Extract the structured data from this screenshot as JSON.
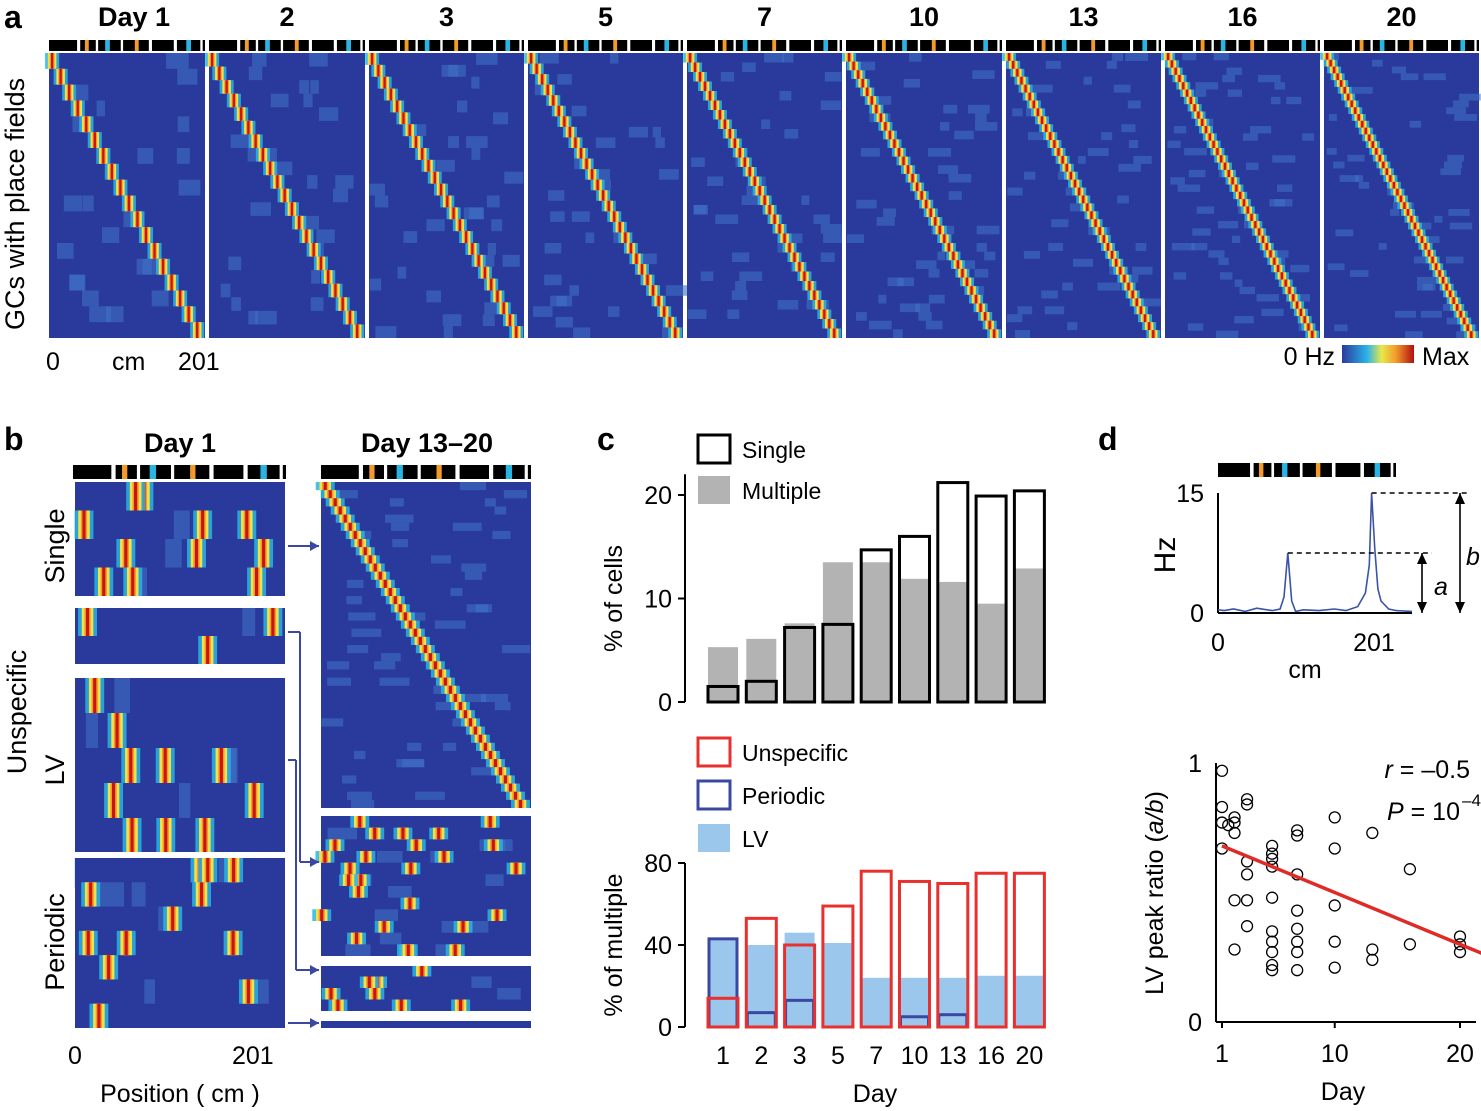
{
  "panels": {
    "a": "a",
    "b": "b",
    "c": "c",
    "d": "d"
  },
  "panel_a": {
    "days": [
      "Day 1",
      "2",
      "3",
      "5",
      "7",
      "10",
      "13",
      "16",
      "20"
    ],
    "ylabel": "GCs with place fields",
    "x_start": "0",
    "x_unit": "cm",
    "x_end": "201",
    "colorbar_min": "0 Hz",
    "colorbar_max": "Max"
  },
  "panel_b": {
    "title_left": "Day 1",
    "title_right": "Day 13–20",
    "group_label": "Unspecific",
    "rows": [
      "Single",
      "LV",
      "Periodic"
    ],
    "x_start": "0",
    "x_end": "201",
    "xlabel": "Position ( cm )"
  },
  "legend_top": {
    "single": "Single",
    "multiple": "Multiple"
  },
  "legend_bottom": {
    "unspecific": "Unspecific",
    "periodic": "Periodic",
    "lv": "LV"
  },
  "colors": {
    "heat_bg": "#2a3a9c",
    "grey": "#b3b3b3",
    "red": "#e8302e",
    "blue": "#3a48a4",
    "lightblue": "#9cc7ec",
    "orange": "#f39a2a",
    "cyan": "#29b5e3",
    "fit": "#e02a25",
    "trace": "#3a54a8"
  },
  "chart_data": [
    {
      "id": "c-top",
      "type": "bar",
      "categories": [
        "1",
        "2",
        "3",
        "5",
        "7",
        "10",
        "13",
        "16",
        "20"
      ],
      "series": [
        {
          "name": "Single",
          "values": [
            1.5,
            2.0,
            7.2,
            7.5,
            14.7,
            16.0,
            21.2,
            19.9,
            20.4
          ]
        },
        {
          "name": "Multiple",
          "values": [
            5.3,
            6.1,
            7.6,
            13.5,
            13.5,
            11.9,
            11.6,
            9.5,
            12.9
          ]
        }
      ],
      "ylabel": "% of cells",
      "ylim": [
        0,
        22
      ],
      "yticks": [
        "0",
        "10",
        "20"
      ]
    },
    {
      "id": "c-bottom",
      "type": "bar",
      "categories": [
        "1",
        "2",
        "3",
        "5",
        "7",
        "10",
        "13",
        "16",
        "20"
      ],
      "series": [
        {
          "name": "Unspecific",
          "values": [
            14,
            53,
            40,
            59,
            76,
            71,
            70,
            75,
            75
          ]
        },
        {
          "name": "Periodic",
          "values": [
            43,
            7,
            13,
            0,
            0,
            5,
            6,
            0,
            0
          ]
        },
        {
          "name": "LV",
          "values": [
            43,
            40,
            46,
            41,
            24,
            24,
            24,
            25,
            25
          ]
        }
      ],
      "ylabel": "% of multiple",
      "xlabel": "Day",
      "ylim": [
        0,
        80
      ],
      "yticks": [
        "0",
        "40",
        "80"
      ]
    },
    {
      "id": "d-top",
      "type": "line",
      "x": [
        0,
        8,
        20,
        35,
        50,
        70,
        80,
        85,
        90,
        95,
        100,
        110,
        130,
        150,
        165,
        180,
        190,
        195,
        198,
        202,
        206,
        210,
        220,
        230,
        250
      ],
      "y": [
        0.4,
        0.3,
        0.5,
        0.2,
        0.6,
        0.3,
        0.5,
        2,
        7.5,
        1.5,
        0.2,
        0.4,
        0.3,
        0.5,
        0.3,
        0.8,
        2.5,
        6,
        15,
        8,
        3,
        1.5,
        0.5,
        0.3,
        0.2
      ],
      "ylabel": "Hz",
      "xlabel": "cm",
      "yticks": [
        "0",
        "15"
      ],
      "xticks": [
        "0",
        "201"
      ],
      "ylim": [
        0,
        15
      ],
      "xlim": [
        0,
        250
      ],
      "annotations": [
        "a",
        "b"
      ]
    },
    {
      "id": "d-bottom",
      "type": "scatter",
      "x": [
        1,
        1,
        1,
        1,
        1.5,
        2,
        2,
        2,
        2,
        2,
        3,
        3,
        3,
        3,
        3,
        3,
        5,
        5,
        5,
        5,
        5,
        5,
        5,
        5,
        5,
        5,
        7,
        7,
        7,
        7,
        7,
        7,
        7,
        7,
        10,
        10,
        10,
        10,
        10,
        13,
        13,
        13,
        16,
        16,
        20,
        20,
        20
      ],
      "y": [
        0.97,
        0.83,
        0.77,
        0.67,
        0.76,
        0.79,
        0.77,
        0.73,
        0.47,
        0.28,
        0.86,
        0.84,
        0.62,
        0.57,
        0.47,
        0.37,
        0.68,
        0.65,
        0.63,
        0.6,
        0.48,
        0.35,
        0.31,
        0.27,
        0.22,
        0.2,
        0.74,
        0.72,
        0.57,
        0.43,
        0.36,
        0.31,
        0.27,
        0.2,
        0.79,
        0.67,
        0.45,
        0.31,
        0.21,
        0.73,
        0.28,
        0.24,
        0.59,
        0.3,
        0.33,
        0.3,
        0.27
      ],
      "fit": {
        "x": [
          1,
          22
        ],
        "y": [
          0.68,
          0.26
        ]
      },
      "r_label": "r",
      "r_value": " = –0.5",
      "p_label": "P",
      "p_value": " = 10",
      "p_exp": "–4",
      "ylabel": "LV peak ratio (",
      "ylabel_ab": "a/b",
      "ylabel_end": ")",
      "xlabel": "Day",
      "xticks": [
        "1",
        "10",
        "20"
      ],
      "yticks": [
        "0",
        "1"
      ],
      "xlim": [
        0,
        22
      ],
      "ylim": [
        0,
        1
      ]
    }
  ]
}
